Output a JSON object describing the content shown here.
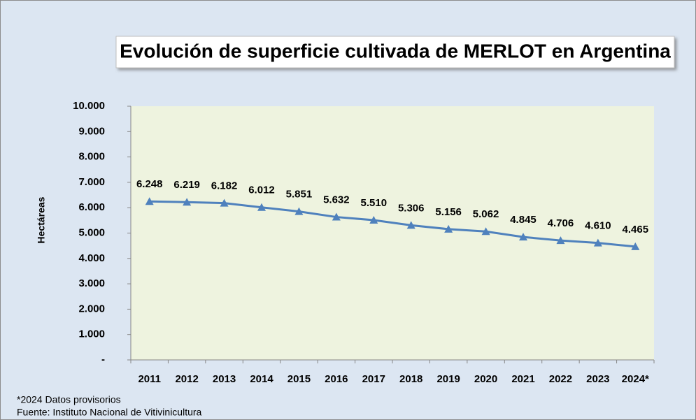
{
  "chart_data": {
    "type": "line",
    "title": "Evolución de superficie cultivada de MERLOT en Argentina",
    "y_label": "Hectáreas",
    "categories": [
      "2011",
      "2012",
      "2013",
      "2014",
      "2015",
      "2016",
      "2017",
      "2018",
      "2019",
      "2020",
      "2021",
      "2022",
      "2023",
      "2024*"
    ],
    "values": [
      6248,
      6219,
      6182,
      6012,
      5851,
      5632,
      5510,
      5306,
      5156,
      5062,
      4845,
      4706,
      4610,
      4465
    ],
    "value_labels": [
      "6.248",
      "6.219",
      "6.182",
      "6.012",
      "5.851",
      "5.632",
      "5.510",
      "5.306",
      "5.156",
      "5.062",
      "4.845",
      "4.706",
      "4.610",
      "4.465"
    ],
    "color": "#4f81bd",
    "ylim": [
      0,
      10000
    ],
    "yticks": [
      {
        "value": 0,
        "label": "-"
      },
      {
        "value": 1000,
        "label": "1.000"
      },
      {
        "value": 2000,
        "label": "2.000"
      },
      {
        "value": 3000,
        "label": "3.000"
      },
      {
        "value": 4000,
        "label": "4.000"
      },
      {
        "value": 5000,
        "label": "5.000"
      },
      {
        "value": 6000,
        "label": "6.000"
      },
      {
        "value": 7000,
        "label": "7.000"
      },
      {
        "value": 8000,
        "label": "8.000"
      },
      {
        "value": 9000,
        "label": "9.000"
      },
      {
        "value": 10000,
        "label": "10.000"
      }
    ],
    "grid": false,
    "notes": [
      "*2024 Datos provisorios",
      "Fuente: Instituto Nacional de Vitivinicultura"
    ]
  }
}
